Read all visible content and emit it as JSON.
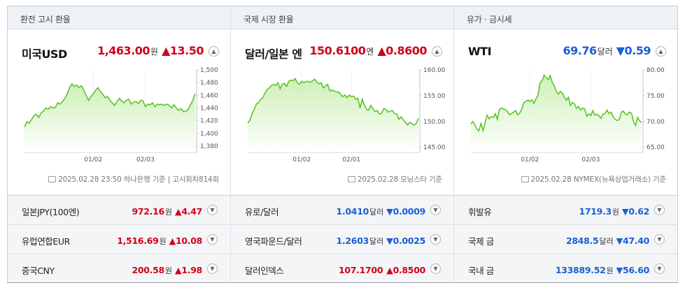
{
  "panels": [
    {
      "header": "환전 고시 환율",
      "name": "미국USD",
      "price": "1,463.00",
      "unit": "원",
      "dir": "up",
      "arrow": "▲",
      "change": "13.50",
      "toggle_icon": "chevron-up-icon",
      "toggle_glyph": "▲",
      "note": "2025.02.28 23:50 하나은행 기준  |  고시회차814회"
    },
    {
      "header": "국제 시장 환율",
      "name": "달러/일본 엔",
      "price": "150.6100",
      "unit": "엔",
      "dir": "up",
      "arrow": "▲",
      "change": "0.8600",
      "toggle_icon": "chevron-up-icon",
      "toggle_glyph": "▲",
      "note": "2025.02.28 모닝스타 기준"
    },
    {
      "header": "유가 · 금시세",
      "name": "WTI",
      "price": "69.76",
      "unit": "달러",
      "dir": "down",
      "arrow": "▼",
      "change": "0.59",
      "toggle_icon": "chevron-up-icon",
      "toggle_glyph": "▲",
      "note": "2025.02.28 NYMEX(뉴욕상업거래소) 기준"
    }
  ],
  "rows": [
    [
      {
        "name": "일본JPY(100엔)",
        "price": "972.16",
        "unit": "원",
        "dir": "up",
        "arrow": "▲",
        "change": "4.47"
      },
      {
        "name": "유로/달러",
        "price": "1.0410",
        "unit": "달러",
        "dir": "down",
        "arrow": "▼",
        "change": "0.0009"
      },
      {
        "name": "휘발유",
        "price": "1719.3",
        "unit": "원",
        "dir": "down",
        "arrow": "▼",
        "change": "0.62"
      }
    ],
    [
      {
        "name": "유럽연합EUR",
        "price": "1,516.69",
        "unit": "원",
        "dir": "up",
        "arrow": "▲",
        "change": "10.08"
      },
      {
        "name": "영국파운드/달러",
        "price": "1.2603",
        "unit": "달러",
        "dir": "down",
        "arrow": "▼",
        "change": "0.0025"
      },
      {
        "name": "국제 금",
        "price": "2848.5",
        "unit": "달러",
        "dir": "down",
        "arrow": "▼",
        "change": "47.40"
      }
    ],
    [
      {
        "name": "중국CNY",
        "price": "200.58",
        "unit": "원",
        "dir": "up",
        "arrow": "▲",
        "change": "1.98"
      },
      {
        "name": "달러인덱스",
        "price": "107.1700",
        "unit": "",
        "dir": "up",
        "arrow": "▲",
        "change": "0.8500"
      },
      {
        "name": "국내 금",
        "price": "133889.52",
        "unit": "원",
        "dir": "down",
        "arrow": "▼",
        "change": "56.60"
      }
    ]
  ],
  "row_toggle_glyph": "▼",
  "row_toggle_icon": "chevron-down-icon",
  "colors": {
    "up": "#d0021b",
    "down": "#1a5fd6",
    "line": "#5cc42a",
    "fill_top": "#c8eeb0",
    "fill_bottom": "#ffffff"
  },
  "chart_data": [
    {
      "type": "area",
      "ylim": [
        1370,
        1500
      ],
      "yticks": [
        "1,500",
        "1,480",
        "1,460",
        "1,440",
        "1,420",
        "1,400",
        "1,380"
      ],
      "ytick_values": [
        1500,
        1480,
        1460,
        1440,
        1420,
        1400,
        1380
      ],
      "xticks": [
        {
          "label": "01/02",
          "at": 29
        },
        {
          "label": "02/03",
          "at": 51
        }
      ],
      "values": [
        1410,
        1418,
        1416,
        1422,
        1428,
        1430,
        1425,
        1432,
        1435,
        1440,
        1438,
        1442,
        1440,
        1441,
        1448,
        1446,
        1450,
        1455,
        1462,
        1472,
        1478,
        1474,
        1476,
        1472,
        1475,
        1468,
        1460,
        1452,
        1458,
        1462,
        1468,
        1472,
        1466,
        1462,
        1456,
        1458,
        1452,
        1448,
        1444,
        1450,
        1455,
        1451,
        1448,
        1452,
        1454,
        1446,
        1449,
        1450,
        1447,
        1452,
        1451,
        1442,
        1446,
        1445,
        1448,
        1442,
        1446,
        1445,
        1446,
        1444,
        1446,
        1444,
        1440,
        1445,
        1440,
        1436,
        1439,
        1434,
        1435,
        1437,
        1445,
        1452,
        1463
      ]
    },
    {
      "type": "area",
      "ylim": [
        144,
        160
      ],
      "yticks": [
        "160.00",
        "155.00",
        "150.00",
        "145.00"
      ],
      "ytick_values": [
        160,
        155,
        150,
        145
      ],
      "xticks": [
        {
          "label": "01/02",
          "at": 25
        },
        {
          "label": "02/01",
          "at": 48
        }
      ],
      "values": [
        149.7,
        150.2,
        151.5,
        152.3,
        153.4,
        153.6,
        154.3,
        154.6,
        155.5,
        156.2,
        156.5,
        157,
        157.2,
        157,
        157.5,
        156.3,
        157.2,
        157.4,
        156.8,
        157.8,
        158,
        157.9,
        158.3,
        157.5,
        157.2,
        157.8,
        157.5,
        157.7,
        157.8,
        157.6,
        157.9,
        158.2,
        157.7,
        157.3,
        157.5,
        156.5,
        156.9,
        157.2,
        155.9,
        156.1,
        155.9,
        155.7,
        155.7,
        155.3,
        154.8,
        155.1,
        154.6,
        155.1,
        154.8,
        154.9,
        154.3,
        154.5,
        152.6,
        154.3,
        153.2,
        152.3,
        152.2,
        153.1,
        152.4,
        151.9,
        152.1,
        151.4,
        151.6,
        152.5,
        152.3,
        151.8,
        152,
        152.1,
        151.5,
        151.4,
        150.4,
        150.9,
        150.3,
        149.8,
        149.3,
        149.8,
        149.6,
        149.3,
        149.6,
        150.6
      ]
    },
    {
      "type": "area",
      "ylim": [
        64,
        80
      ],
      "yticks": [
        "80.00",
        "75.00",
        "70.00",
        "65.00"
      ],
      "ytick_values": [
        80,
        75,
        70,
        65
      ],
      "xticks": [
        {
          "label": "01/02",
          "at": 29
        },
        {
          "label": "02/03",
          "at": 59
        }
      ],
      "values": [
        69.5,
        70,
        69.3,
        68.5,
        68.2,
        69.6,
        68.2,
        69.8,
        71.2,
        70.5,
        70.9,
        70.8,
        71.5,
        70.4,
        72.3,
        72.6,
        72.4,
        72.3,
        71.9,
        71.3,
        71.5,
        71.8,
        72.1,
        71.3,
        71.6,
        72.3,
        73.6,
        73.9,
        74.1,
        73.9,
        74.2,
        73.5,
        74.4,
        75.1,
        77.5,
        77.9,
        79,
        78.5,
        78.1,
        78.9,
        77.6,
        76.9,
        75.8,
        75.3,
        75.8,
        75.5,
        74.7,
        74.1,
        74.7,
        73.1,
        73.7,
        73.4,
        72.5,
        72.9,
        72.2,
        72.6,
        72.4,
        71,
        71.5,
        71.1,
        72.1,
        71.2,
        71.4,
        71.1,
        70.6,
        71.4,
        71.5,
        72.2,
        71.5,
        71.8,
        70.9,
        70.4,
        70.2,
        70.3,
        71.8,
        72,
        71.4,
        71.3,
        71.8,
        71.6,
        70,
        69.2,
        70.8,
        70.1,
        69.8
      ]
    }
  ]
}
